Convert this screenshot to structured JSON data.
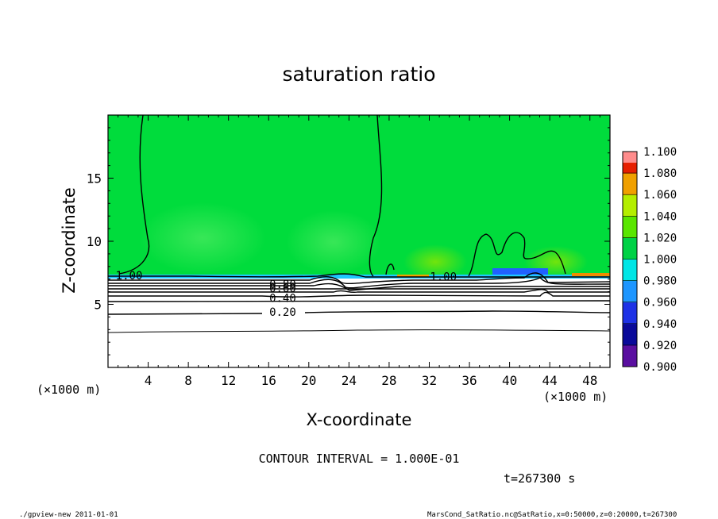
{
  "chart_data": {
    "type": "heatmap",
    "title": "saturation ratio",
    "xlabel": "X-coordinate",
    "ylabel": "Z-coordinate",
    "x_unit_label": "(×1000 m)",
    "x_unit_label_bottom": "(×1000 m)",
    "xlim": [
      0,
      50
    ],
    "ylim": [
      0,
      20
    ],
    "x_ticks": [
      "4",
      "8",
      "12",
      "16",
      "20",
      "24",
      "28",
      "32",
      "36",
      "40",
      "44",
      "48"
    ],
    "x_tick_values": [
      4,
      8,
      12,
      16,
      20,
      24,
      28,
      32,
      36,
      40,
      44,
      48
    ],
    "y_ticks": [
      "5",
      "10",
      "15"
    ],
    "y_tick_values": [
      5,
      10,
      15
    ],
    "colorbar": {
      "levels": [
        "0.900",
        "0.920",
        "0.940",
        "0.960",
        "0.980",
        "1.000",
        "1.020",
        "1.040",
        "1.060",
        "1.080",
        "1.100"
      ],
      "colors": [
        "#5a0fa0",
        "#0a0a9a",
        "#1e32e6",
        "#1e96ff",
        "#00e6e6",
        "#00d246",
        "#5ae600",
        "#b4ee00",
        "#f0a000",
        "#e61e00",
        "#ff8c8c"
      ]
    },
    "colors": {
      "background_field": "#00dc3c",
      "saturated_top": "#00dc3c",
      "dry_lower": "#ffffff"
    },
    "contour_labels": [
      {
        "text": "1.00",
        "x": 2.1,
        "z": 7.3
      },
      {
        "text": "1.00",
        "x": 33.4,
        "z": 7.2
      },
      {
        "text": "0.80",
        "x": 17.4,
        "z": 6.6
      },
      {
        "text": "0.60",
        "x": 17.4,
        "z": 6.3
      },
      {
        "text": "0.40",
        "x": 17.4,
        "z": 5.5
      },
      {
        "text": "0.20",
        "x": 17.4,
        "z": 4.4
      }
    ],
    "contour_interval_text": "CONTOUR INTERVAL = 1.000E-01",
    "time_text": "t=267300 s"
  },
  "footer": {
    "left": "./gpview-new   2011-01-01",
    "right": "MarsCond_SatRatio.nc@SatRatio,x=0:50000,z=0:20000,t=267300"
  }
}
